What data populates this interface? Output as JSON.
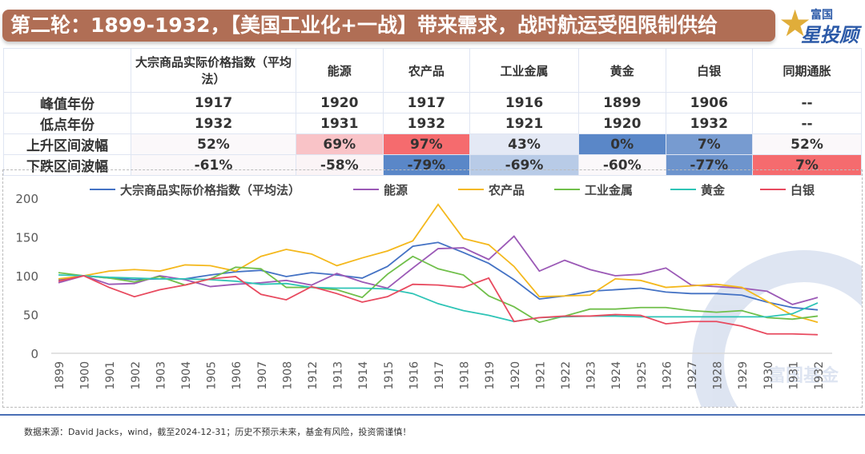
{
  "title": "第二轮：1899-1932，【美国工业化+一战】带来需求，战时航运受阻限制供给",
  "logo": {
    "top": "富国",
    "bottom": "星投顾"
  },
  "watermark": "富国基金",
  "table": {
    "headers": [
      "",
      "大宗商品实际价格指数（平均法）",
      "能源",
      "农产品",
      "工业金属",
      "黄金",
      "白银",
      "同期通胀"
    ],
    "rows": [
      {
        "label": "峰值年份",
        "cells": [
          "1917",
          "1920",
          "1917",
          "1916",
          "1899",
          "1906",
          "--"
        ],
        "colors": [
          "",
          "",
          "",
          "",
          "",
          "",
          ""
        ]
      },
      {
        "label": "低点年份",
        "cells": [
          "1932",
          "1931",
          "1932",
          "1921",
          "1920",
          "1932",
          "--"
        ],
        "colors": [
          "",
          "",
          "",
          "",
          "",
          "",
          ""
        ]
      },
      {
        "label": "上升区间波幅",
        "cells": [
          "52%",
          "69%",
          "97%",
          "43%",
          "0%",
          "7%",
          "52%"
        ],
        "colors": [
          "#fbf8fa",
          "#f9c3c7",
          "#f56b6e",
          "#e4e9f5",
          "#5a87c8",
          "#779bd0",
          "#fbf8fa"
        ]
      },
      {
        "label": "下跌区间波幅",
        "cells": [
          "-61%",
          "-58%",
          "-79%",
          "-69%",
          "-60%",
          "-77%",
          "7%"
        ],
        "colors": [
          "#fbf8fa",
          "#fbf4f6",
          "#5a87c8",
          "#b8cbe7",
          "#fbf8fa",
          "#6d94cd",
          "#f56b6e"
        ]
      }
    ]
  },
  "chart_data": {
    "type": "line",
    "categories": [
      "1899",
      "1900",
      "1901",
      "1902",
      "1903",
      "1904",
      "1905",
      "1906",
      "1907",
      "1908",
      "1912",
      "1913",
      "1914",
      "1915",
      "1916",
      "1917",
      "1918",
      "1919",
      "1920",
      "1921",
      "1922",
      "1923",
      "1924",
      "1925",
      "1926",
      "1927",
      "1928",
      "1929",
      "1930",
      "1931",
      "1932"
    ],
    "ylim": [
      0,
      200
    ],
    "yticks": [
      0,
      50,
      100,
      150,
      200
    ],
    "legend": "top",
    "grid": false,
    "series": [
      {
        "name": "大宗商品实际价格指数（平均法）",
        "color": "#4472c4",
        "values": [
          95,
          100,
          97,
          95,
          96,
          96,
          101,
          105,
          107,
          99,
          104,
          101,
          97,
          112,
          138,
          143,
          130,
          116,
          95,
          70,
          74,
          80,
          82,
          84,
          79,
          77,
          77,
          75,
          66,
          59,
          56
        ]
      },
      {
        "name": "能源",
        "color": "#9b59b6",
        "values": [
          91,
          100,
          89,
          90,
          100,
          95,
          86,
          89,
          91,
          94,
          88,
          103,
          92,
          84,
          110,
          135,
          136,
          121,
          151,
          106,
          120,
          108,
          100,
          102,
          110,
          88,
          86,
          84,
          80,
          63,
          72
        ]
      },
      {
        "name": "农产品",
        "color": "#f4b81c",
        "values": [
          96,
          100,
          106,
          108,
          106,
          114,
          113,
          106,
          125,
          134,
          128,
          113,
          123,
          132,
          145,
          192,
          148,
          140,
          112,
          73,
          74,
          75,
          96,
          94,
          85,
          87,
          89,
          85,
          67,
          49,
          40
        ]
      },
      {
        "name": "工业金属",
        "color": "#70bf4a",
        "values": [
          104,
          100,
          97,
          92,
          99,
          88,
          96,
          111,
          109,
          85,
          85,
          82,
          72,
          102,
          125,
          109,
          101,
          74,
          60,
          40,
          48,
          57,
          57,
          59,
          59,
          55,
          53,
          55,
          46,
          44,
          48
        ]
      },
      {
        "name": "黄金",
        "color": "#2ec4b6",
        "values": [
          101,
          100,
          98,
          97,
          96,
          96,
          95,
          93,
          89,
          90,
          85,
          84,
          84,
          83,
          77,
          64,
          55,
          49,
          41,
          46,
          47,
          48,
          48,
          47,
          47,
          47,
          47,
          47,
          47,
          51,
          65
        ]
      },
      {
        "name": "白银",
        "color": "#e84a5f",
        "values": [
          93,
          100,
          85,
          73,
          82,
          88,
          96,
          99,
          76,
          69,
          86,
          77,
          66,
          73,
          89,
          88,
          85,
          97,
          41,
          46,
          48,
          48,
          50,
          49,
          38,
          41,
          41,
          35,
          25,
          25,
          24
        ]
      }
    ]
  },
  "footer": "数据来源：David Jacks，wind，截至2024-12-31；历史不预示未来，基金有风险，投资需谨慎！"
}
